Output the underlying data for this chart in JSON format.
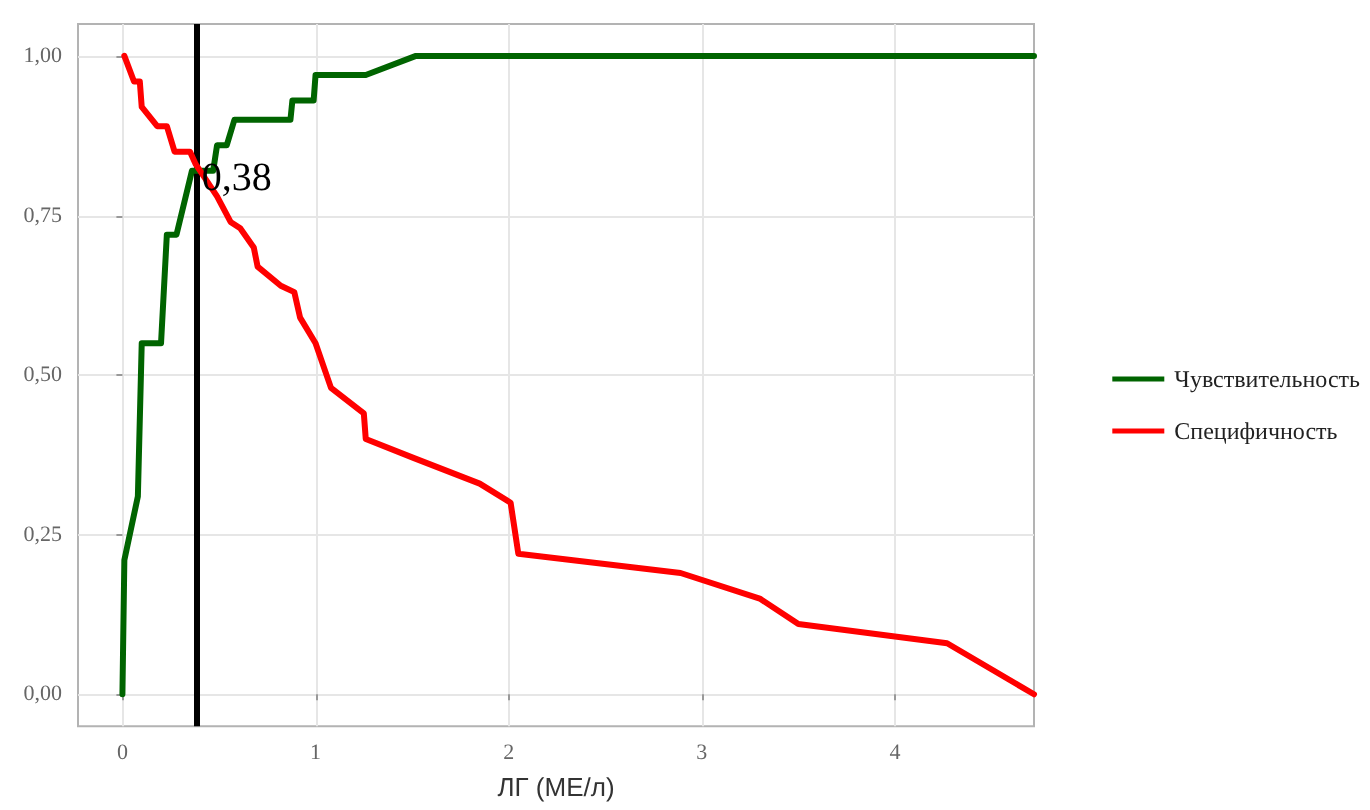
{
  "chart_data": {
    "type": "line",
    "xlabel": "ЛГ (МЕ/л)",
    "xlim": [
      -0.23,
      4.72
    ],
    "ylim": [
      -0.05,
      1.05
    ],
    "xticks": [
      0,
      1,
      2,
      3,
      4
    ],
    "yticks": [
      {
        "value": 0,
        "label": "0,00"
      },
      {
        "value": 0.25,
        "label": "0,25"
      },
      {
        "value": 0.5,
        "label": "0,50"
      },
      {
        "value": 0.75,
        "label": "0,75"
      },
      {
        "value": 1,
        "label": "1,00"
      }
    ],
    "grid": true,
    "legend": "right",
    "marker": "none",
    "line_style": "solid",
    "ref_lines": [
      {
        "axis": "x",
        "value": 0.38,
        "label": "0,38",
        "color": "#000000"
      }
    ],
    "series": [
      {
        "name": "Чувствительность",
        "color": "#006400",
        "x": [
          0,
          0.01,
          0.08,
          0.1,
          0.2,
          0.23,
          0.28,
          0.36,
          0.47,
          0.49,
          0.54,
          0.58,
          0.87,
          0.88,
          0.99,
          1.0,
          1.26,
          1.52,
          4.72
        ],
        "values": [
          0,
          0.21,
          0.31,
          0.55,
          0.55,
          0.72,
          0.72,
          0.82,
          0.82,
          0.86,
          0.86,
          0.9,
          0.9,
          0.93,
          0.93,
          0.97,
          0.97,
          1.0,
          1.0
        ]
      },
      {
        "name": "Специфичность",
        "color": "#ff0000",
        "x": [
          0.01,
          0.06,
          0.09,
          0.1,
          0.18,
          0.23,
          0.27,
          0.35,
          0.38,
          0.49,
          0.56,
          0.61,
          0.68,
          0.7,
          0.82,
          0.89,
          0.92,
          1.0,
          1.08,
          1.25,
          1.26,
          1.51,
          1.85,
          2.01,
          2.03,
          2.05,
          2.89,
          3.3,
          3.5,
          4.27,
          4.72
        ],
        "values": [
          1.0,
          0.96,
          0.96,
          0.92,
          0.89,
          0.89,
          0.85,
          0.85,
          0.83,
          0.78,
          0.74,
          0.73,
          0.7,
          0.67,
          0.64,
          0.63,
          0.59,
          0.55,
          0.48,
          0.44,
          0.4,
          0.37,
          0.33,
          0.3,
          0.26,
          0.22,
          0.19,
          0.15,
          0.11,
          0.08,
          0
        ]
      }
    ]
  }
}
